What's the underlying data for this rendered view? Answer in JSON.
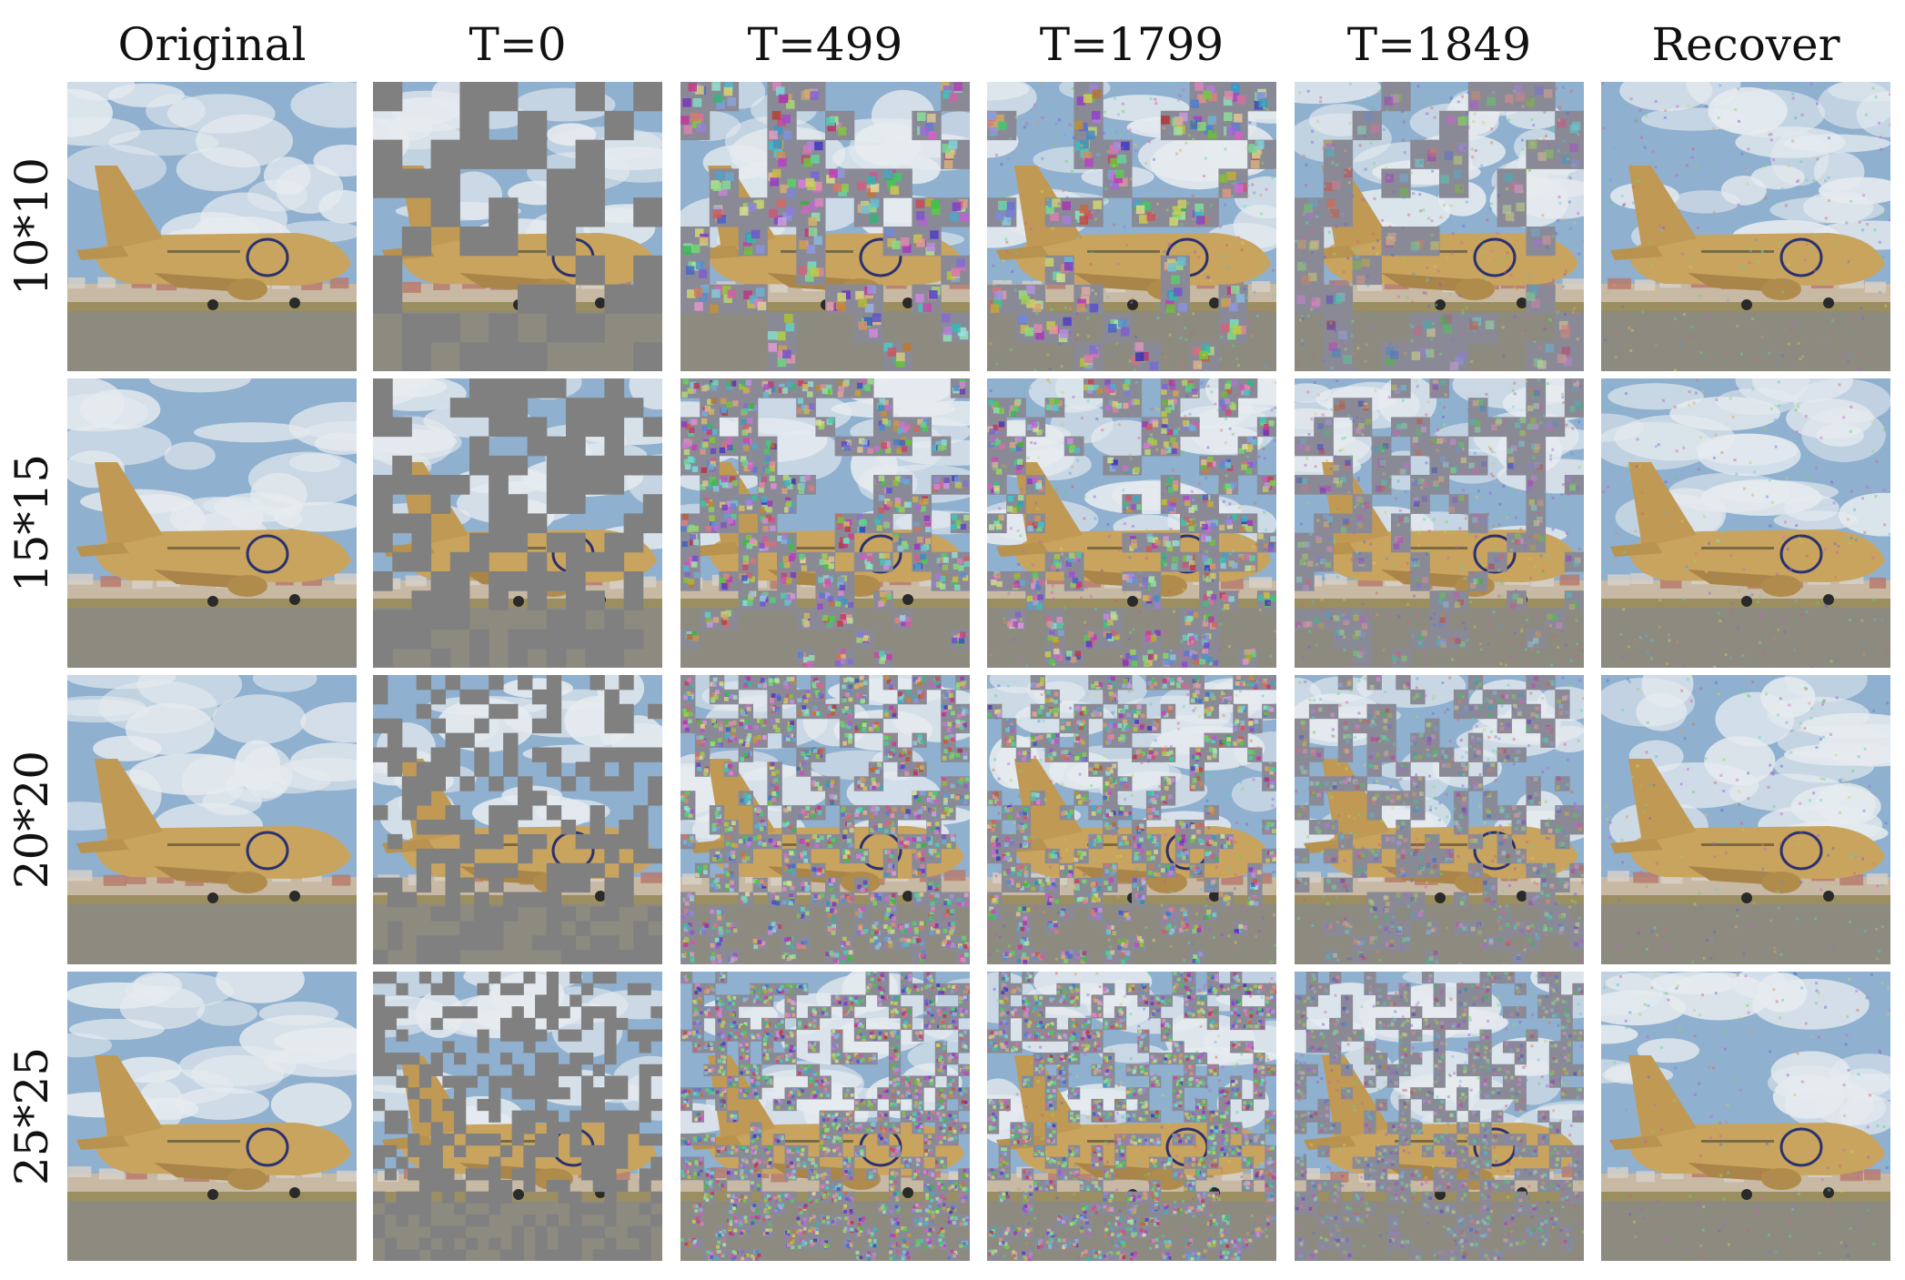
{
  "figure": {
    "columns": [
      "Original",
      "T=0",
      "T=499",
      "T=1799",
      "T=1849",
      "Recover"
    ],
    "rows": [
      "10*10",
      "15*15",
      "20*20",
      "25*25"
    ],
    "colors": {
      "sky": "#8fb0cf",
      "cloud": "#e6ebef",
      "fuselage": "#c9a45f",
      "ground": "#8d8a80",
      "mask_gray": "#808080",
      "logo": "#2b3270"
    }
  }
}
